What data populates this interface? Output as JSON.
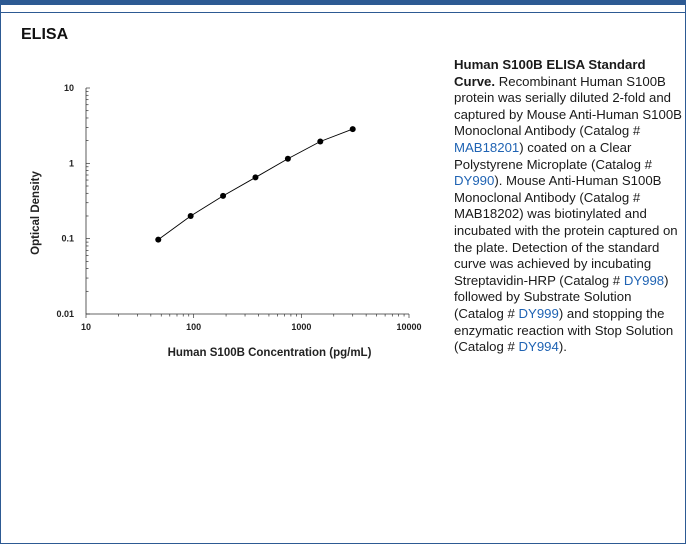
{
  "section_title": "ELISA",
  "chart_data": {
    "type": "scatter",
    "title": "",
    "xlabel": "Human S100B Concentration (pg/mL)",
    "ylabel": "Optical Density",
    "x_scale": "log",
    "y_scale": "log",
    "xlim": [
      10,
      10000
    ],
    "ylim": [
      0.01,
      10
    ],
    "x_ticks": [
      {
        "value": 10,
        "label": "10"
      },
      {
        "value": 100,
        "label": "100"
      },
      {
        "value": 1000,
        "label": "1000"
      },
      {
        "value": 10000,
        "label": "10000"
      }
    ],
    "y_ticks": [
      {
        "value": 0.01,
        "label": "0.01"
      },
      {
        "value": 0.1,
        "label": "0.1"
      },
      {
        "value": 1,
        "label": "1"
      },
      {
        "value": 10,
        "label": "10"
      }
    ],
    "grid": false,
    "series": [
      {
        "x": [
          46.9,
          93.8,
          187.5,
          375,
          750,
          1500,
          3000
        ],
        "y": [
          0.097,
          0.2,
          0.37,
          0.65,
          1.15,
          1.95,
          2.85
        ],
        "marker": "circle",
        "color": "#000000",
        "fit_line": true
      }
    ]
  },
  "caption": {
    "lead": "Human S100B ELISA Standard Curve.",
    "parts": [
      {
        "text": " Recombinant Human S100B protein was serially diluted 2-fold and captured by Mouse Anti-Human S100B Monoclonal Antibody (Catalog # "
      },
      {
        "text": "MAB18201",
        "link": true
      },
      {
        "text": ") coated on a Clear Polystyrene Microplate (Catalog # "
      },
      {
        "text": "DY990",
        "link": true
      },
      {
        "text": "). Mouse Anti-Human S100B Monoclonal Antibody (Catalog # MAB18202) was biotinylated and incubated with the protein captured on the plate. Detection of the standard curve was achieved by incubating Streptavidin-HRP (Catalog # "
      },
      {
        "text": "DY998",
        "link": true
      },
      {
        "text": ") followed by Substrate Solution (Catalog # "
      },
      {
        "text": "DY999",
        "link": true
      },
      {
        "text": ") and stopping the enzymatic reaction with Stop Solution (Catalog # "
      },
      {
        "text": "DY994",
        "link": true
      },
      {
        "text": ")."
      }
    ]
  },
  "colors": {
    "frame": "#2d5a93",
    "link": "#1f63b3"
  }
}
